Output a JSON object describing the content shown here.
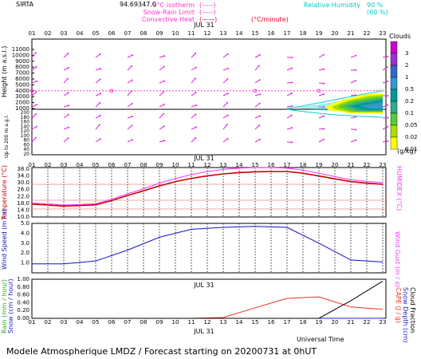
{
  "header": {
    "station": "SIRTA",
    "coords": "94.69347.0",
    "legend": [
      {
        "label": "0°C isotherm",
        "sample": "(-----)",
        "color": "#ff33cc"
      },
      {
        "label": "Snow-Rain Limit",
        "sample": "(-----)",
        "color": "#ff33cc"
      },
      {
        "label": "Convective Heat",
        "sample": "(——)",
        "color": "#ff33cc"
      },
      {
        "label": "(°C/minute)",
        "sample": "",
        "color": "#ff0033"
      }
    ],
    "humidity_label": "Relative Humidity",
    "humidity_values": [
      "90 %",
      "(60 %)"
    ],
    "humidity_color": "#00cccc"
  },
  "date_label": "JUL 31",
  "hours": [
    "01",
    "02",
    "03",
    "04",
    "05",
    "06",
    "07",
    "08",
    "09",
    "10",
    "11",
    "12",
    "13",
    "14",
    "15",
    "16",
    "17",
    "18",
    "19",
    "20",
    "21",
    "22",
    "23"
  ],
  "panels": {
    "height": {
      "ylabel": "Height (m a.s.l.)",
      "ylabel2": "Up to 200 m a.g.l.",
      "yticks_upper": [
        "11000",
        "10000",
        "9000",
        "8000",
        "7000",
        "6000",
        "5000",
        "4000",
        "3000",
        "2000",
        "1000"
      ],
      "yticks_lower": [
        "200",
        "180",
        "160",
        "140",
        "120",
        "100",
        "80",
        "60",
        "40",
        "20"
      ],
      "isotherm_height_m": 4000
    },
    "temperature": {
      "ylabel": "Temperature (°C)",
      "ylabel_right": "HUMIDEX (°C)",
      "yticks": [
        "38.0",
        "34.0",
        "30.0",
        "26.0",
        "22.0",
        "18.0",
        "14.0",
        "10.0"
      ]
    },
    "wind": {
      "ylabel": "Wind Speed (m / s)",
      "ylabel_right": "Wind Gust (m / s)",
      "yticks": [
        "5.0",
        "4.0",
        "3.0",
        "2.0",
        "1.0"
      ]
    },
    "precip": {
      "ylabel": "Rain (mm / hour)",
      "ylabel2": "Snow (cm / hour)",
      "ylabel_right": "CAPE (J / g)",
      "ylabel_right2": "Snow Depth (cm)",
      "ylabel_right3": "Cloud Fraction",
      "yticks": [
        "1.00",
        "0.80",
        "0.60",
        "0.40",
        "0.20",
        "0.00"
      ]
    }
  },
  "cloud_scale": {
    "title": "Clouds",
    "unit": "(g/kg)",
    "labels": [
      "3",
      "2",
      "1",
      "0.5",
      "0.2",
      "0.1",
      "0.05",
      "0.02",
      "0.01"
    ],
    "colors": [
      "#cc00cc",
      "#9933cc",
      "#3366cc",
      "#3399cc",
      "#009999",
      "#33aa88",
      "#55cc33",
      "#aadd00",
      "#ffff00"
    ]
  },
  "chart_data": [
    {
      "type": "line",
      "title": "",
      "xlabel": "",
      "ylabel": "Temperature (°C)",
      "ylim": [
        10,
        38
      ],
      "x": [
        1,
        2,
        3,
        4,
        5,
        6,
        7,
        8,
        9,
        10,
        11,
        12,
        13,
        14,
        15,
        16,
        17,
        18,
        19,
        20,
        21,
        22,
        23
      ],
      "series": [
        {
          "name": "Temperature",
          "color": "#cc0000",
          "values": [
            17.5,
            17.0,
            16.4,
            16.7,
            17.1,
            19.6,
            22.6,
            25.3,
            28.2,
            30.7,
            32.6,
            34.1,
            35.2,
            36.0,
            36.4,
            36.6,
            36.6,
            35.6,
            34.0,
            32.3,
            30.7,
            29.8,
            29.2
          ]
        },
        {
          "name": "HUMIDEX",
          "color": "#ff33ff",
          "values": [
            18.2,
            17.6,
            17.0,
            17.3,
            17.8,
            20.4,
            23.6,
            26.5,
            29.8,
            32.6,
            34.8,
            36.6,
            37.8,
            38.6,
            38.9,
            38.9,
            38.6,
            37.4,
            35.6,
            33.6,
            31.8,
            30.8,
            30.1
          ]
        }
      ]
    },
    {
      "type": "line",
      "title": "",
      "xlabel": "",
      "ylabel": "Wind Speed (m / s)",
      "ylim": [
        0,
        5
      ],
      "x": [
        1,
        3,
        5,
        7,
        9,
        11,
        13,
        15,
        17,
        19,
        21,
        23
      ],
      "series": [
        {
          "name": "Wind Speed",
          "color": "#1111cc",
          "values": [
            0.9,
            0.9,
            1.2,
            2.3,
            3.6,
            4.4,
            4.6,
            4.7,
            4.6,
            3.0,
            1.3,
            1.1
          ]
        }
      ]
    },
    {
      "type": "line",
      "title": "",
      "xlabel": "",
      "ylabel": "Rain (mm / hour)",
      "ylim": [
        0,
        1
      ],
      "x": [
        1,
        3,
        5,
        7,
        9,
        11,
        13,
        15,
        17,
        19,
        21,
        23
      ],
      "series": [
        {
          "name": "Rain",
          "color": "#33aa33",
          "values": [
            0,
            0,
            0,
            0,
            0,
            0,
            0,
            0,
            0,
            0,
            0,
            0
          ]
        },
        {
          "name": "Snow",
          "color": "#2222cc",
          "values": [
            0,
            0,
            0,
            0,
            0,
            0,
            0,
            0,
            0,
            0,
            0,
            0
          ]
        },
        {
          "name": "CAPE",
          "color": "#ee3322",
          "values": [
            0,
            0,
            0,
            0,
            0,
            0,
            0.02,
            0.27,
            0.51,
            0.55,
            0.29,
            0.23
          ]
        },
        {
          "name": "Cloud Fraction",
          "color": "#000000",
          "values": [
            0,
            0,
            0,
            0,
            0,
            0,
            0,
            0,
            0,
            0,
            0.45,
            0.95
          ]
        }
      ]
    }
  ],
  "footer": {
    "universal_time": "Universal Time",
    "model_line": "Modele Atmospherique LMDZ / Forecast starting on 20200731 at 0hUT"
  }
}
